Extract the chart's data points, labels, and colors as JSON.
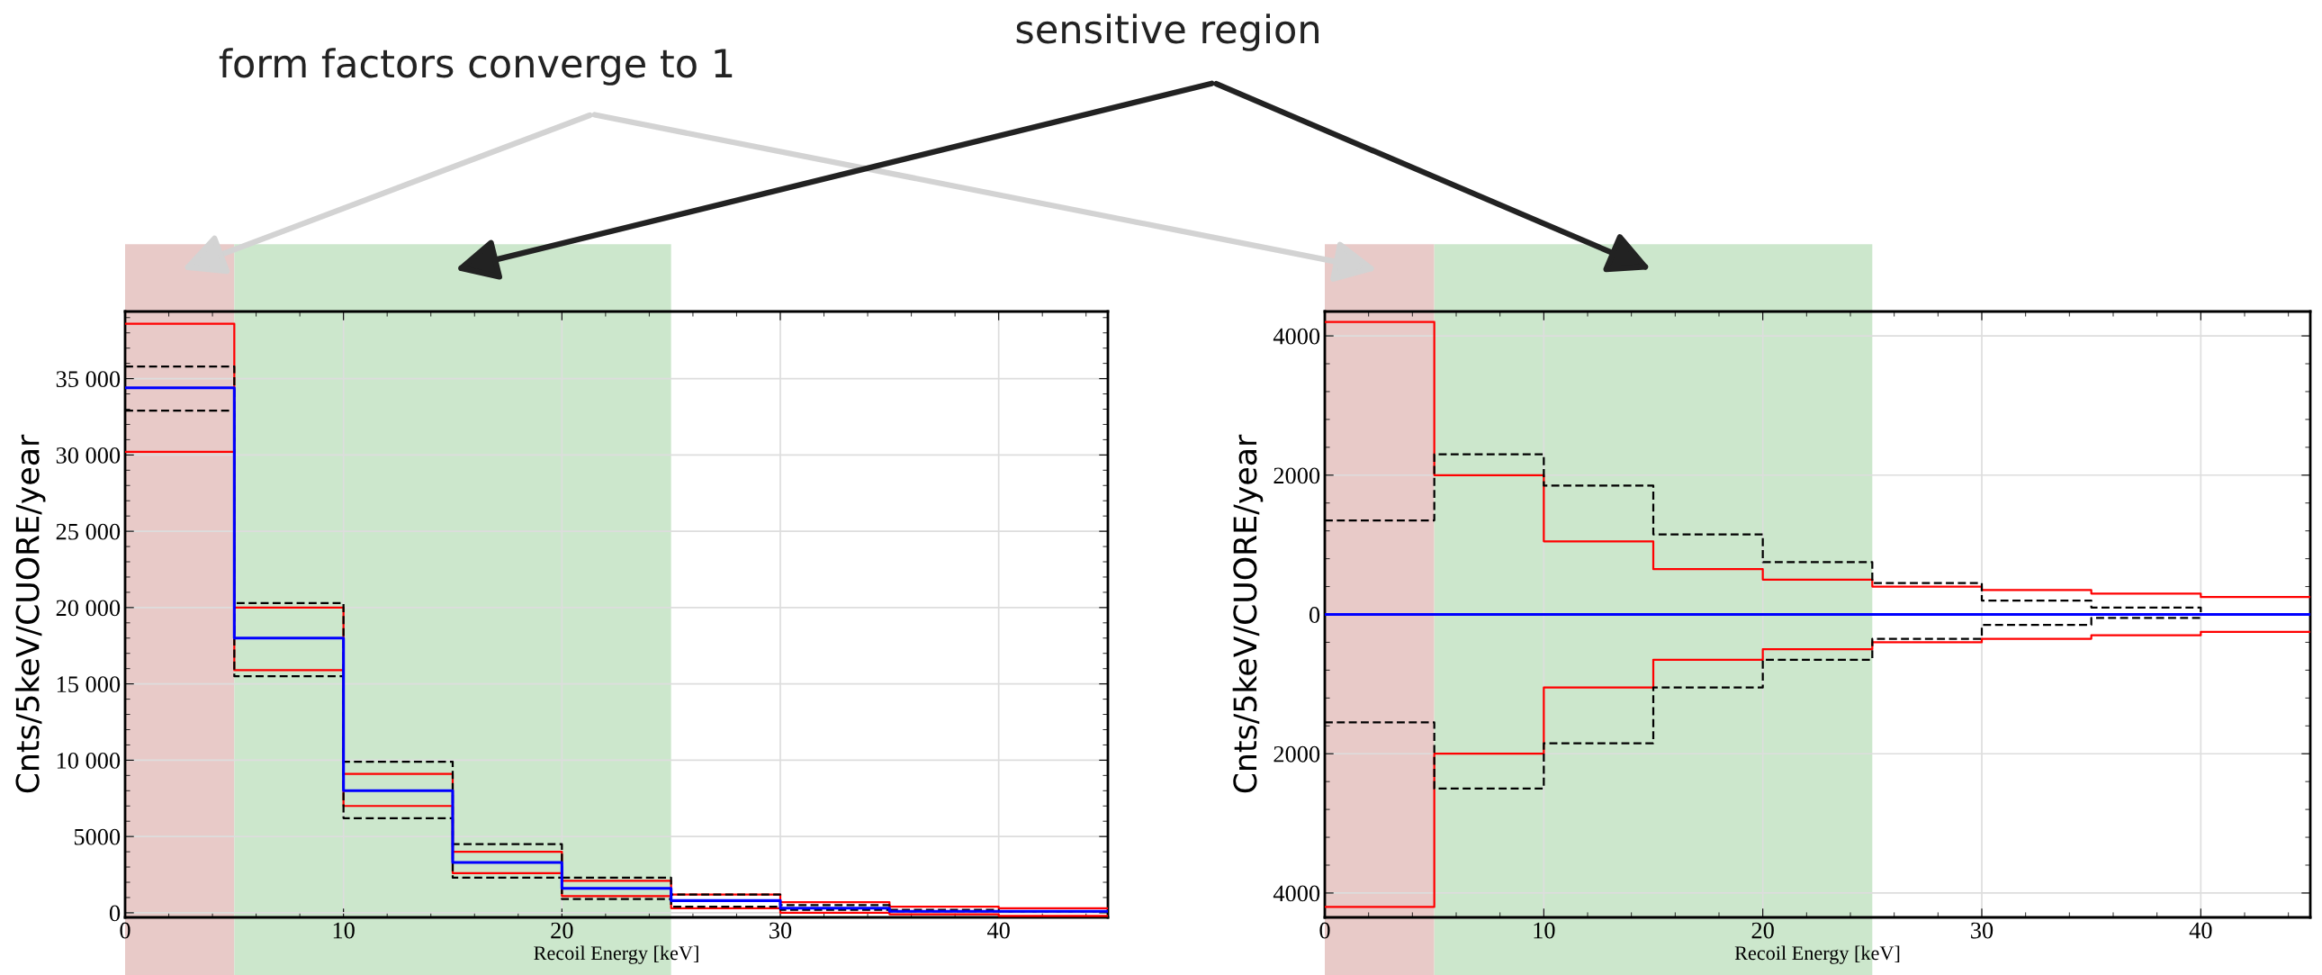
{
  "chart_data": [
    {
      "type": "step",
      "x": [
        0,
        5,
        10,
        15,
        20,
        25,
        30,
        35,
        40,
        45
      ],
      "xlabel": "Recoil Energy [keV]",
      "ylabel": "Cnts/5keV/CUORE/year",
      "xlim": [
        0,
        45
      ],
      "xticks": [
        0,
        10,
        20,
        30,
        40
      ],
      "ylim": [
        -300,
        39400
      ],
      "yticks": [
        0,
        5000,
        {
          "value": 10000,
          "label": "10 000"
        },
        {
          "value": 15000,
          "label": "15 000"
        },
        {
          "value": 20000,
          "label": "20 000"
        },
        {
          "value": 25000,
          "label": "25 000"
        },
        {
          "value": 30000,
          "label": "30 000"
        },
        {
          "value": 35000,
          "label": "35 000"
        }
      ],
      "grid": true,
      "series": [
        {
          "color": "#ff0000",
          "line_style": "solid",
          "values": [
            38600,
            20000,
            9100,
            4000,
            2100,
            1200,
            700,
            400,
            300,
            300
          ]
        },
        {
          "color": "#ff0000",
          "line_style": "solid",
          "values": [
            30200,
            15900,
            7000,
            2600,
            1100,
            300,
            0,
            -100,
            -200,
            -200
          ]
        },
        {
          "color": "#000000",
          "line_style": "dashed",
          "values": [
            35800,
            20300,
            9900,
            4500,
            2300,
            1200,
            500,
            200,
            100,
            100
          ]
        },
        {
          "color": "#000000",
          "line_style": "dashed",
          "values": [
            32900,
            15500,
            6200,
            2300,
            900,
            400,
            200,
            100,
            100,
            100
          ]
        },
        {
          "color": "#0000ff",
          "line_style": "solid",
          "values": [
            34400,
            18000,
            8000,
            3300,
            1600,
            800,
            300,
            100,
            100,
            100
          ]
        }
      ],
      "bands": [
        {
          "axis": "x",
          "from": 0,
          "to": 5,
          "color": "#e8cac8"
        },
        {
          "axis": "x",
          "from": 5,
          "to": 25,
          "color": "#cce7cc"
        }
      ],
      "annotations": [
        "form factors converge to 1",
        "sensitive region"
      ]
    },
    {
      "type": "step",
      "x": [
        0,
        5,
        10,
        15,
        20,
        25,
        30,
        35,
        40,
        45
      ],
      "xlabel": "Recoil Energy [keV]",
      "ylabel": "Cnts/5keV/CUORE/year",
      "xlim": [
        0,
        45
      ],
      "xticks": [
        0,
        10,
        20,
        30,
        40
      ],
      "ylim": [
        -4350,
        4350
      ],
      "yticks": [
        {
          "value": -4000,
          "label": "4000"
        },
        {
          "value": -2000,
          "label": "2000"
        },
        0,
        2000,
        4000
      ],
      "grid": true,
      "series": [
        {
          "color": "#ff0000",
          "line_style": "solid",
          "values": [
            4200,
            2000,
            1050,
            650,
            500,
            400,
            350,
            300,
            250,
            250
          ]
        },
        {
          "color": "#ff0000",
          "line_style": "solid",
          "values": [
            -4200,
            -2000,
            -1050,
            -650,
            -500,
            -400,
            -350,
            -300,
            -250,
            -250
          ]
        },
        {
          "color": "#000000",
          "line_style": "dashed",
          "values": [
            1350,
            2300,
            1850,
            1150,
            750,
            450,
            200,
            100,
            0,
            0
          ]
        },
        {
          "color": "#000000",
          "line_style": "dashed",
          "values": [
            -1550,
            -2500,
            -1850,
            -1050,
            -650,
            -350,
            -150,
            -50,
            0,
            0
          ]
        },
        {
          "color": "#0000ff",
          "line_style": "solid",
          "values": [
            0,
            0,
            0,
            0,
            0,
            0,
            0,
            0,
            0,
            0
          ]
        }
      ],
      "bands": [
        {
          "axis": "x",
          "from": 0,
          "to": 5,
          "color": "#e8cac8"
        },
        {
          "axis": "x",
          "from": 5,
          "to": 25,
          "color": "#cce7cc"
        }
      ]
    }
  ]
}
